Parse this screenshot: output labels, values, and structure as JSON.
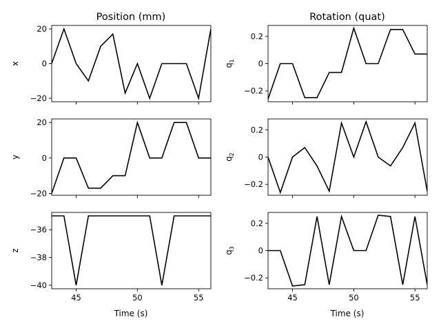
{
  "figure": {
    "col_titles": [
      "Position (mm)",
      "Rotation (quat)"
    ],
    "xlabel": "Time (s)"
  },
  "colors": {
    "line": "#000000",
    "axes": "#000000",
    "background": "#ffffff"
  },
  "chart_data": [
    {
      "type": "line",
      "ylabel": "x",
      "xlim": [
        43,
        56
      ],
      "ylim": [
        -22,
        22
      ],
      "xticks": [
        45,
        50,
        55
      ],
      "yticks": [
        -20,
        0,
        20
      ],
      "x": [
        43,
        44,
        45,
        46,
        47,
        48,
        49,
        50,
        51,
        52,
        53,
        54,
        55,
        56
      ],
      "values": [
        0,
        20,
        0,
        -10,
        10,
        17,
        -17,
        0,
        -20,
        0,
        0,
        0,
        -20,
        20
      ]
    },
    {
      "type": "line",
      "ylabel": "y",
      "xlim": [
        43,
        56
      ],
      "ylim": [
        -21,
        22
      ],
      "xticks": [
        45,
        50,
        55
      ],
      "yticks": [
        -20,
        0,
        20
      ],
      "x": [
        43,
        44,
        45,
        46,
        47,
        48,
        49,
        50,
        51,
        52,
        53,
        54,
        55,
        56
      ],
      "values": [
        -20,
        0,
        0,
        -17,
        -17,
        -10,
        -10,
        20,
        0,
        0,
        20,
        20,
        0,
        0
      ]
    },
    {
      "type": "line",
      "ylabel": "z",
      "xlim": [
        43,
        56
      ],
      "ylim": [
        -40.25,
        -34.75
      ],
      "xticks": [
        45,
        50,
        55
      ],
      "yticks": [
        -40,
        -38,
        -36
      ],
      "x": [
        43,
        44,
        45,
        46,
        47,
        48,
        49,
        50,
        51,
        52,
        53,
        54,
        55,
        56
      ],
      "values": [
        -35,
        -35,
        -40,
        -35,
        -35,
        -35,
        -35,
        -35,
        -35,
        -40,
        -35,
        -35,
        -35,
        -35
      ]
    },
    {
      "type": "line",
      "ylabel": "q",
      "ylabel_sub": "1",
      "xlim": [
        43,
        56
      ],
      "ylim": [
        -0.28,
        0.28
      ],
      "xticks": [
        45,
        50,
        55
      ],
      "yticks": [
        -0.2,
        0.0,
        0.2
      ],
      "x": [
        43,
        44,
        45,
        46,
        47,
        48,
        49,
        50,
        51,
        52,
        53,
        54,
        55,
        56
      ],
      "values": [
        -0.26,
        0.0,
        0.0,
        -0.25,
        -0.25,
        -0.065,
        -0.065,
        0.26,
        0.0,
        0.0,
        0.25,
        0.25,
        0.07,
        0.07
      ]
    },
    {
      "type": "line",
      "ylabel": "q",
      "ylabel_sub": "2",
      "xlim": [
        43,
        56
      ],
      "ylim": [
        -0.28,
        0.28
      ],
      "xticks": [
        45,
        50,
        55
      ],
      "yticks": [
        -0.2,
        0.0,
        0.2
      ],
      "x": [
        43,
        44,
        45,
        46,
        47,
        48,
        49,
        50,
        51,
        52,
        53,
        54,
        55,
        56
      ],
      "values": [
        0.0,
        -0.26,
        0.0,
        0.07,
        -0.065,
        -0.25,
        0.25,
        0.0,
        0.26,
        0.0,
        -0.065,
        0.07,
        0.25,
        -0.25
      ]
    },
    {
      "type": "line",
      "ylabel": "q",
      "ylabel_sub": "3",
      "xlim": [
        43,
        56
      ],
      "ylim": [
        -0.28,
        0.28
      ],
      "xticks": [
        45,
        50,
        55
      ],
      "yticks": [
        -0.2,
        0.0,
        0.2
      ],
      "x": [
        43,
        44,
        45,
        46,
        47,
        48,
        49,
        50,
        51,
        52,
        53,
        54,
        55,
        56
      ],
      "values": [
        0.0,
        0.0,
        -0.26,
        -0.25,
        0.25,
        -0.25,
        0.25,
        0.0,
        0.0,
        0.26,
        0.25,
        -0.25,
        0.25,
        -0.25
      ]
    }
  ]
}
